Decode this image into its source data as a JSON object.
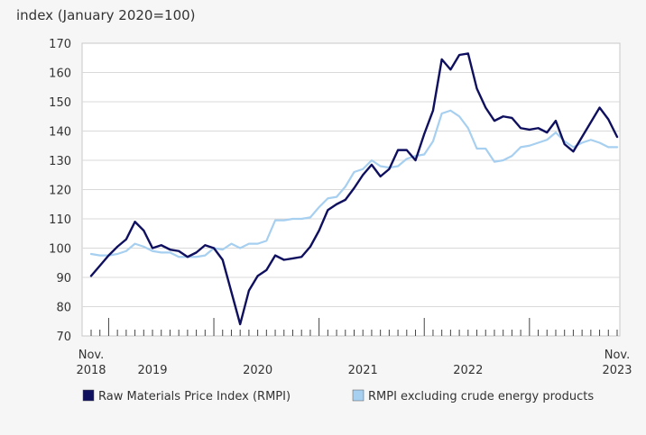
{
  "chart_data": {
    "type": "line",
    "title": "",
    "ylabel": "index (January 2020=100)",
    "xlabel": "",
    "ylim": [
      70,
      170
    ],
    "yticks": [
      70,
      80,
      90,
      100,
      110,
      120,
      130,
      140,
      150,
      160,
      170
    ],
    "xlim": [
      "2018-11",
      "2023-11"
    ],
    "xtick_labels": [
      {
        "lines": [
          "Nov.",
          "2018"
        ],
        "at": "2018-11"
      },
      {
        "lines": [
          "2019"
        ],
        "at": "2019-06"
      },
      {
        "lines": [
          "2020"
        ],
        "at": "2020-06"
      },
      {
        "lines": [
          "2021"
        ],
        "at": "2021-06"
      },
      {
        "lines": [
          "2022"
        ],
        "at": "2022-06"
      },
      {
        "lines": [
          "Nov.",
          "2023"
        ],
        "at": "2023-11"
      }
    ],
    "major_ticks": [
      "2019-01",
      "2020-01",
      "2021-01",
      "2022-01",
      "2023-01"
    ],
    "legend_position": "bottom",
    "grid": true,
    "x": [
      "2018-11",
      "2018-12",
      "2019-01",
      "2019-02",
      "2019-03",
      "2019-04",
      "2019-05",
      "2019-06",
      "2019-07",
      "2019-08",
      "2019-09",
      "2019-10",
      "2019-11",
      "2019-12",
      "2020-01",
      "2020-02",
      "2020-03",
      "2020-04",
      "2020-05",
      "2020-06",
      "2020-07",
      "2020-08",
      "2020-09",
      "2020-10",
      "2020-11",
      "2020-12",
      "2021-01",
      "2021-02",
      "2021-03",
      "2021-04",
      "2021-05",
      "2021-06",
      "2021-07",
      "2021-08",
      "2021-09",
      "2021-10",
      "2021-11",
      "2021-12",
      "2022-01",
      "2022-02",
      "2022-03",
      "2022-04",
      "2022-05",
      "2022-06",
      "2022-07",
      "2022-08",
      "2022-09",
      "2022-10",
      "2022-11",
      "2022-12",
      "2023-01",
      "2023-02",
      "2023-03",
      "2023-04",
      "2023-05",
      "2023-06",
      "2023-07",
      "2023-08",
      "2023-09",
      "2023-10",
      "2023-11"
    ],
    "series": [
      {
        "name": "Raw Materials Price Index (RMPI)",
        "color": "#0f0f5f",
        "values": [
          90.5,
          94,
          97.5,
          100.5,
          103,
          109,
          106,
          100,
          101,
          99.5,
          99,
          97,
          98.5,
          101,
          100,
          96,
          85,
          74,
          85.5,
          90.5,
          92.5,
          97.5,
          96,
          96.5,
          97,
          100.5,
          106,
          113,
          115,
          116.5,
          120.5,
          125,
          128.5,
          124.5,
          127,
          133.5,
          133.5,
          130,
          139,
          147,
          164.5,
          161,
          166,
          166.5,
          154.5,
          148,
          143.5,
          145,
          144.5,
          141,
          140.5,
          141,
          139.5,
          143.5,
          135.5,
          133,
          138,
          143,
          148,
          144,
          138
        ]
      },
      {
        "name": "RMPI excluding crude energy products",
        "color": "#a6cff0",
        "values": [
          98,
          97.5,
          97.5,
          98,
          99,
          101.5,
          100.5,
          99,
          98.5,
          98.5,
          97,
          97,
          97,
          97.5,
          100,
          99.5,
          101.5,
          100,
          101.5,
          101.5,
          102.5,
          109.5,
          109.5,
          110,
          110,
          110.5,
          114,
          117,
          117.5,
          121,
          126,
          127,
          130,
          128,
          127.5,
          128,
          130.5,
          131.5,
          132,
          136.5,
          146,
          147,
          145,
          141,
          134,
          134,
          129.5,
          130,
          131.5,
          134.5,
          135,
          136,
          137,
          139.5,
          136.5,
          134.5,
          136,
          137,
          136,
          134.5,
          134.5
        ]
      }
    ]
  }
}
